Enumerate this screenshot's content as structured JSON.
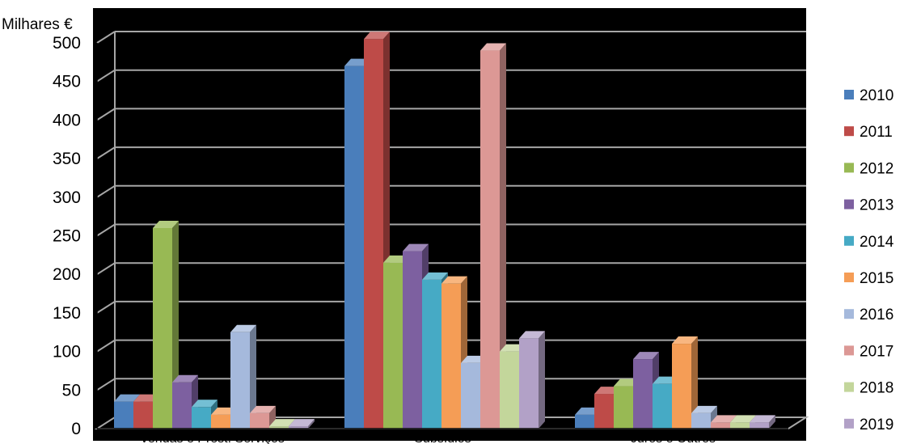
{
  "chart_data": {
    "type": "bar",
    "title": "",
    "xlabel": "",
    "ylabel": "Milhares €",
    "ylim": [
      0,
      500
    ],
    "yticks": [
      0,
      50,
      100,
      150,
      200,
      250,
      300,
      350,
      400,
      450,
      500
    ],
    "categories": [
      "Vendas e Prest. Serviços",
      "Subsídios",
      "Juros e Outros"
    ],
    "series": [
      {
        "name": "2010",
        "color": "#4a7ebb",
        "values": [
          35,
          470,
          18
        ]
      },
      {
        "name": "2011",
        "color": "#be4b48",
        "values": [
          35,
          505,
          45
        ]
      },
      {
        "name": "2012",
        "color": "#98b954",
        "values": [
          260,
          215,
          55
        ]
      },
      {
        "name": "2013",
        "color": "#7d60a0",
        "values": [
          60,
          230,
          90
        ]
      },
      {
        "name": "2014",
        "color": "#46aac5",
        "values": [
          28,
          193,
          58
        ]
      },
      {
        "name": "2015",
        "color": "#f59d56",
        "values": [
          18,
          188,
          110
        ]
      },
      {
        "name": "2016",
        "color": "#a5b9dc",
        "values": [
          125,
          85,
          20
        ]
      },
      {
        "name": "2017",
        "color": "#dc9895",
        "values": [
          20,
          490,
          8
        ]
      },
      {
        "name": "2018",
        "color": "#c3d69b",
        "values": [
          3,
          100,
          8
        ]
      },
      {
        "name": "2019",
        "color": "#b2a1c7",
        "values": [
          3,
          117,
          8
        ]
      }
    ],
    "grid": true,
    "legend": "right",
    "background": "#000000",
    "gridline_color": "#a6a6a6"
  }
}
